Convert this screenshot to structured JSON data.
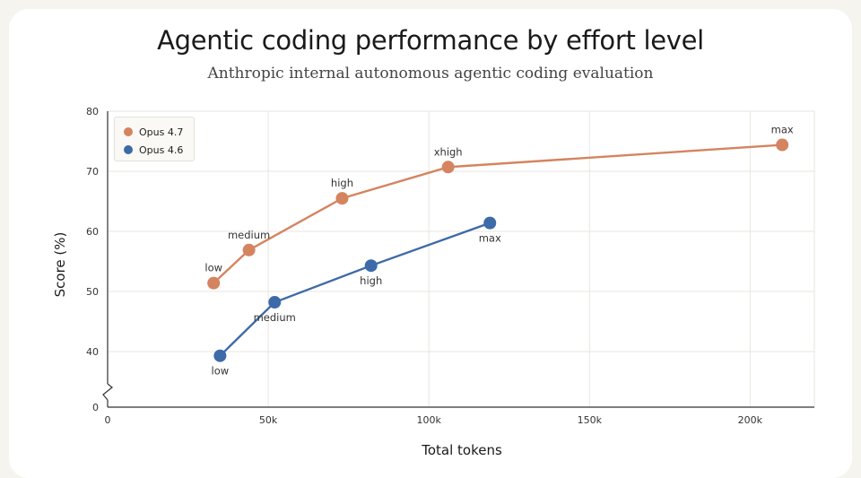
{
  "chart_data": {
    "type": "line",
    "title": "Agentic coding performance by effort level",
    "subtitle": "Anthropic internal autonomous agentic coding evaluation",
    "xlabel": "Total tokens",
    "ylabel": "Score (%)",
    "xlim": [
      0,
      220000
    ],
    "ylim": [
      0,
      80
    ],
    "axis_break": true,
    "grid": true,
    "legend_position": "top-left",
    "x_ticks": [
      {
        "value": 0,
        "label": "0"
      },
      {
        "value": 50000,
        "label": "50k"
      },
      {
        "value": 100000,
        "label": "100k"
      },
      {
        "value": 150000,
        "label": "150k"
      },
      {
        "value": 200000,
        "label": "200k"
      }
    ],
    "y_ticks": [
      {
        "value": 0,
        "label": "0"
      },
      {
        "value": 40,
        "label": "40"
      },
      {
        "value": 50,
        "label": "50"
      },
      {
        "value": 60,
        "label": "60"
      },
      {
        "value": 70,
        "label": "70"
      },
      {
        "value": 80,
        "label": "80"
      }
    ],
    "series": [
      {
        "name": "Opus 4.7",
        "color": "#d4845f",
        "label_placement": "above",
        "points": [
          {
            "x": 33000,
            "y": 51.4,
            "label": "low"
          },
          {
            "x": 44000,
            "y": 56.9,
            "label": "medium"
          },
          {
            "x": 73000,
            "y": 65.5,
            "label": "high"
          },
          {
            "x": 106000,
            "y": 70.7,
            "label": "xhigh"
          },
          {
            "x": 210000,
            "y": 74.4,
            "label": "max"
          }
        ]
      },
      {
        "name": "Opus 4.6",
        "color": "#3d6aa8",
        "label_placement": "below",
        "points": [
          {
            "x": 35000,
            "y": 39.3,
            "label": "low"
          },
          {
            "x": 52000,
            "y": 48.2,
            "label": "medium"
          },
          {
            "x": 82000,
            "y": 54.3,
            "label": "high"
          },
          {
            "x": 119000,
            "y": 61.4,
            "label": "max"
          }
        ]
      }
    ]
  }
}
